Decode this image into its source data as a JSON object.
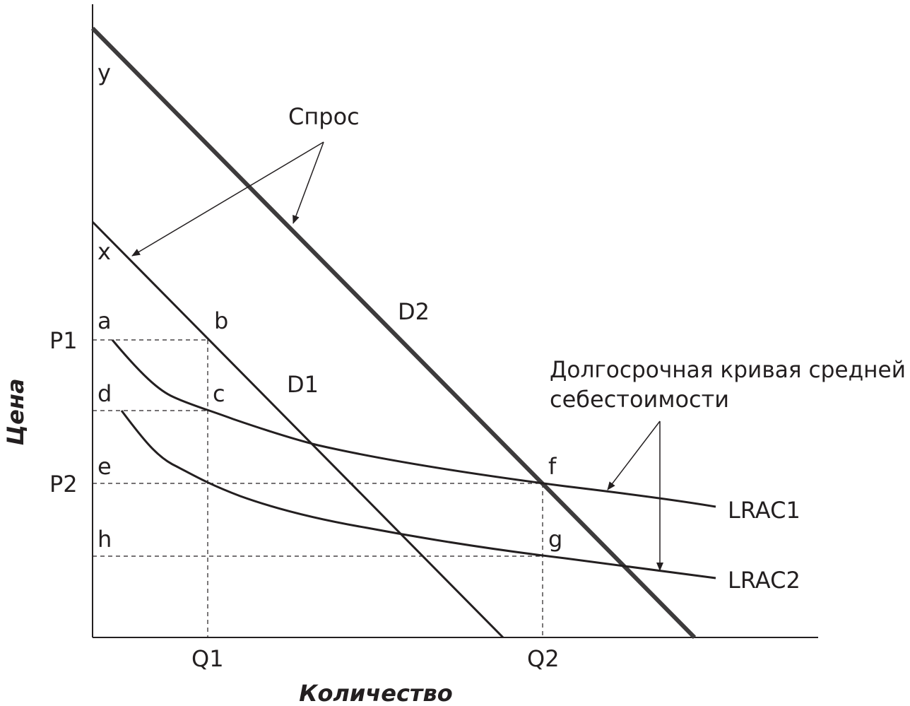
{
  "chart_data": {
    "type": "diagram",
    "axes": {
      "y_title": "Цена",
      "x_title": "Количество"
    },
    "price_ticks": [
      "P1",
      "P2"
    ],
    "quantity_ticks": [
      "Q1",
      "Q2"
    ],
    "points": [
      "y",
      "x",
      "a",
      "b",
      "d",
      "c",
      "e",
      "f",
      "h",
      "g"
    ],
    "curves": {
      "d1": "D1",
      "d2": "D2",
      "lrac1": "LRAC1",
      "lrac2": "LRAC2"
    },
    "annotations": {
      "demand": "Спрос",
      "lrac_line1": "Долгосрочная кривая средней",
      "lrac_line2": "себестоимости"
    }
  }
}
